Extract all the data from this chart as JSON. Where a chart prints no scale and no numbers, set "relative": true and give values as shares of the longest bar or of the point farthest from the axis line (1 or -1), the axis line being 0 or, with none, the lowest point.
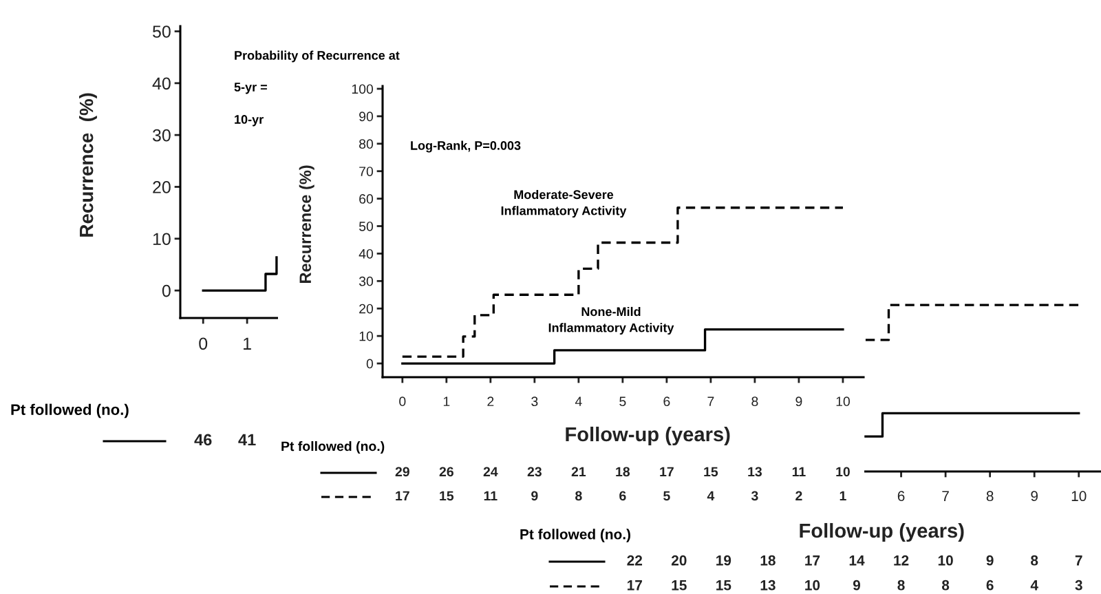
{
  "chart_data": [
    {
      "type": "step",
      "ylabel": "Recurrence  (%)",
      "xlim": [
        -0.52,
        10.5
      ],
      "ylim": [
        -5.3,
        51
      ],
      "xticks": [
        0,
        1
      ],
      "yticks": [
        0,
        10,
        20,
        30,
        40,
        50
      ],
      "annotations": [
        "Probability of Recurrence at",
        "5-yr =",
        "10-yr",
        "Pt followed (no.)",
        "46",
        "41"
      ],
      "series": [
        {
          "color": "#000000",
          "line_style": "solid",
          "x": [
            0,
            1.42,
            1.67
          ],
          "values": [
            0,
            3.2,
            6.4
          ]
        }
      ]
    },
    {
      "type": "step",
      "ylabel": "Recurrence (%)",
      "xlabel": "Follow-up (years)",
      "xlim": [
        -0.45,
        10.47
      ],
      "ylim": [
        -5,
        101
      ],
      "xticks": [
        0,
        1,
        2,
        3,
        4,
        5,
        6,
        7,
        8,
        9,
        10
      ],
      "yticks": [
        0,
        10,
        20,
        30,
        40,
        50,
        60,
        70,
        80,
        90,
        100
      ],
      "annotations": [
        "Log-Rank, P=0.003",
        "Pt followed (no.)",
        "29",
        "26",
        "24",
        "23",
        "21",
        "18",
        "17",
        "15",
        "13",
        "11",
        "10",
        "17",
        "15",
        "11",
        "9",
        "8",
        "6",
        "5",
        "4",
        "3",
        "2",
        "1"
      ],
      "series": [
        {
          "name": "None-Mild\nInflammatory Activity",
          "color": "#000000",
          "line_style": "solid",
          "x": [
            0,
            3.45,
            6.87,
            10
          ],
          "values": [
            0,
            4.8,
            12.4,
            12.4
          ]
        },
        {
          "name": "Moderate-Severe\nInflammatory Activity",
          "color": "#000000",
          "line_style": "dashed",
          "x": [
            0,
            1.38,
            1.64,
            2.07,
            4.0,
            4.44,
            6.25,
            10
          ],
          "values": [
            2.5,
            9.8,
            17.6,
            25,
            34.5,
            44,
            56.7,
            56.7
          ]
        }
      ]
    },
    {
      "type": "step",
      "relative": true,
      "xlabel": "Follow-up (years)",
      "xlim": [
        -0.5,
        10.5
      ],
      "xticks": [
        6,
        7,
        8,
        9,
        10
      ],
      "annotations": [
        "Pt followed (no.)",
        "22",
        "20",
        "19",
        "18",
        "17",
        "14",
        "12",
        "10",
        "9",
        "8",
        "7",
        "17",
        "15",
        "15",
        "13",
        "10",
        "9",
        "8",
        "8",
        "6",
        "4",
        "3"
      ],
      "series": [
        {
          "color": "#000000",
          "line_style": "solid",
          "x": [
            5.2,
            5.58,
            10
          ],
          "values": [
            0.21,
            0.35,
            0.35
          ]
        },
        {
          "color": "#000000",
          "line_style": "dashed",
          "x": [
            5.2,
            5.72,
            10
          ],
          "values": [
            0.79,
            1,
            1
          ]
        }
      ]
    }
  ]
}
